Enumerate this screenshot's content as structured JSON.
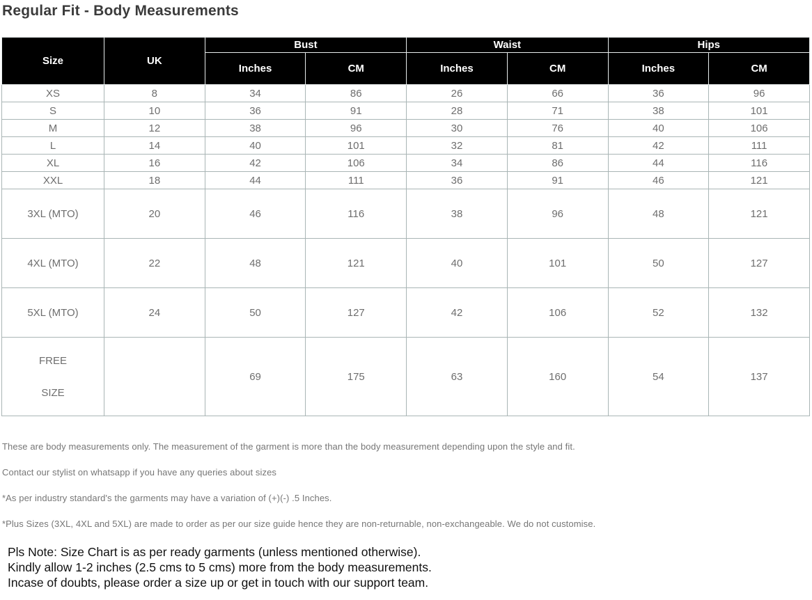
{
  "page": {
    "title": "Regular Fit - Body Measurements"
  },
  "size_chart": {
    "column_headers": {
      "size": "Size",
      "uk": "UK",
      "bust": "Bust",
      "waist": "Waist",
      "hips": "Hips",
      "inches": "Inches",
      "cm": "CM"
    },
    "rows": [
      {
        "size": "XS",
        "uk": "8",
        "bust_in": "34",
        "bust_cm": "86",
        "waist_in": "26",
        "waist_cm": "66",
        "hips_in": "36",
        "hips_cm": "96"
      },
      {
        "size": "S",
        "uk": "10",
        "bust_in": "36",
        "bust_cm": "91",
        "waist_in": "28",
        "waist_cm": "71",
        "hips_in": "38",
        "hips_cm": "101"
      },
      {
        "size": "M",
        "uk": "12",
        "bust_in": "38",
        "bust_cm": "96",
        "waist_in": "30",
        "waist_cm": "76",
        "hips_in": "40",
        "hips_cm": "106"
      },
      {
        "size": "L",
        "uk": "14",
        "bust_in": "40",
        "bust_cm": "101",
        "waist_in": "32",
        "waist_cm": "81",
        "hips_in": "42",
        "hips_cm": "111"
      },
      {
        "size": "XL",
        "uk": "16",
        "bust_in": "42",
        "bust_cm": "106",
        "waist_in": "34",
        "waist_cm": "86",
        "hips_in": "44",
        "hips_cm": "116"
      },
      {
        "size": "XXL",
        "uk": "18",
        "bust_in": "44",
        "bust_cm": "111",
        "waist_in": "36",
        "waist_cm": "91",
        "hips_in": "46",
        "hips_cm": "121"
      },
      {
        "size": "3XL (MTO)",
        "uk": "20",
        "bust_in": "46",
        "bust_cm": "116",
        "waist_in": "38",
        "waist_cm": "96",
        "hips_in": "48",
        "hips_cm": "121"
      },
      {
        "size": "4XL (MTO)",
        "uk": "22",
        "bust_in": "48",
        "bust_cm": "121",
        "waist_in": "40",
        "waist_cm": "101",
        "hips_in": "50",
        "hips_cm": "127"
      },
      {
        "size": "5XL (MTO)",
        "uk": "24",
        "bust_in": "50",
        "bust_cm": "127",
        "waist_in": "42",
        "waist_cm": "106",
        "hips_in": "52",
        "hips_cm": "132"
      },
      {
        "size": "FREE\n\nSIZE",
        "uk": "",
        "bust_in": "69",
        "bust_cm": "175",
        "waist_in": "63",
        "waist_cm": "160",
        "hips_in": "54",
        "hips_cm": "137"
      }
    ]
  },
  "notes": [
    "These are body measurements only. The measurement of the garment is more than the body measurement depending upon the style and fit.",
    "Contact our stylist on whatsapp if you have any queries about sizes",
    "*As per industry standard's the garments may have a variation of (+)(-) .5 Inches.",
    "*Plus Sizes (3XL, 4XL and 5XL) are made to order as per our size guide hence they are non-returnable, non-exchangeable. We do not customise."
  ],
  "final_note": {
    "lines": [
      "Pls Note: Size Chart is as per ready garments (unless mentioned otherwise).",
      "Kindly allow 1-2 inches (2.5 cms to 5 cms) more from the body measurements.",
      "Incase of doubts, please order a size up or get in touch with our support team."
    ]
  },
  "colors": {
    "header_bg": "#000000",
    "header_text": "#ffffff",
    "border": "#a9b5b5",
    "title_text": "#3b3b3b",
    "cell_text": "#6e6e6e",
    "note_text": "#767676",
    "final_note_text": "#111111"
  }
}
